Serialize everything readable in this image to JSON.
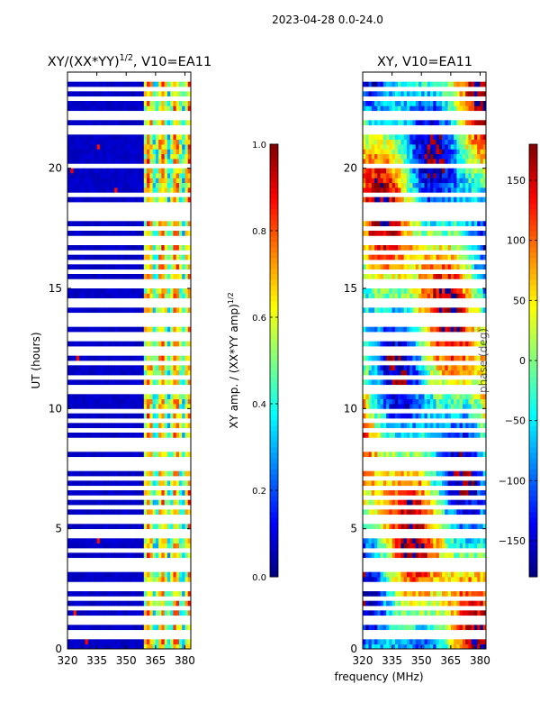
{
  "suptitle": "2023-04-28 0.0-24.0",
  "colors": {
    "axis": "#000000",
    "gap": "#ffffff"
  },
  "chart_data": [
    {
      "type": "heatmap",
      "id": "amp",
      "title_main": "XY/(XX*YY)",
      "title_sup": "1/2",
      "title_tail": ", V10=EA11",
      "xlabel": "",
      "ylabel": "UT (hours)",
      "xlim": [
        320,
        383
      ],
      "ylim": [
        0,
        24
      ],
      "xticks": [
        320,
        335,
        350,
        365,
        380
      ],
      "yticks": [
        0,
        5,
        10,
        15,
        20
      ],
      "colorbar": {
        "label_main": "XY amp. / (XX*YY amp)",
        "label_sup": "1/2",
        "range": [
          0.0,
          1.0
        ],
        "ticks": [
          "0.0",
          "0.2",
          "0.4",
          "0.6",
          "0.8",
          "1.0"
        ],
        "tick_values": [
          0.0,
          0.2,
          0.4,
          0.6,
          0.8,
          1.0
        ],
        "colormap": "jet"
      },
      "description": "Low amplitude (~0.05) for 320-359 MHz, higher amplitude (0.3-0.9) striped bands for 362-380 MHz, with horizontal white gaps of flagged data"
    },
    {
      "type": "heatmap",
      "id": "phase",
      "title_main": "XY, V10=EA11",
      "xlabel": "frequency (MHz)",
      "ylabel": "",
      "xlim": [
        320,
        383
      ],
      "ylim": [
        0,
        24
      ],
      "xticks": [
        320,
        335,
        350,
        365,
        380
      ],
      "yticks": [
        0,
        5,
        10,
        15,
        20
      ],
      "colorbar": {
        "label_main": "phase (deg)",
        "range": [
          -180,
          180
        ],
        "ticks": [
          "150",
          "100",
          "50",
          "0",
          "−50",
          "−100",
          "−150"
        ],
        "tick_values": [
          150,
          100,
          50,
          0,
          -50,
          -100,
          -150
        ],
        "colormap": "jet"
      },
      "description": "Phase varying smoothly with frequency and time, spanning -180 to 180 deg, with horizontal white gaps of flagged data"
    }
  ]
}
